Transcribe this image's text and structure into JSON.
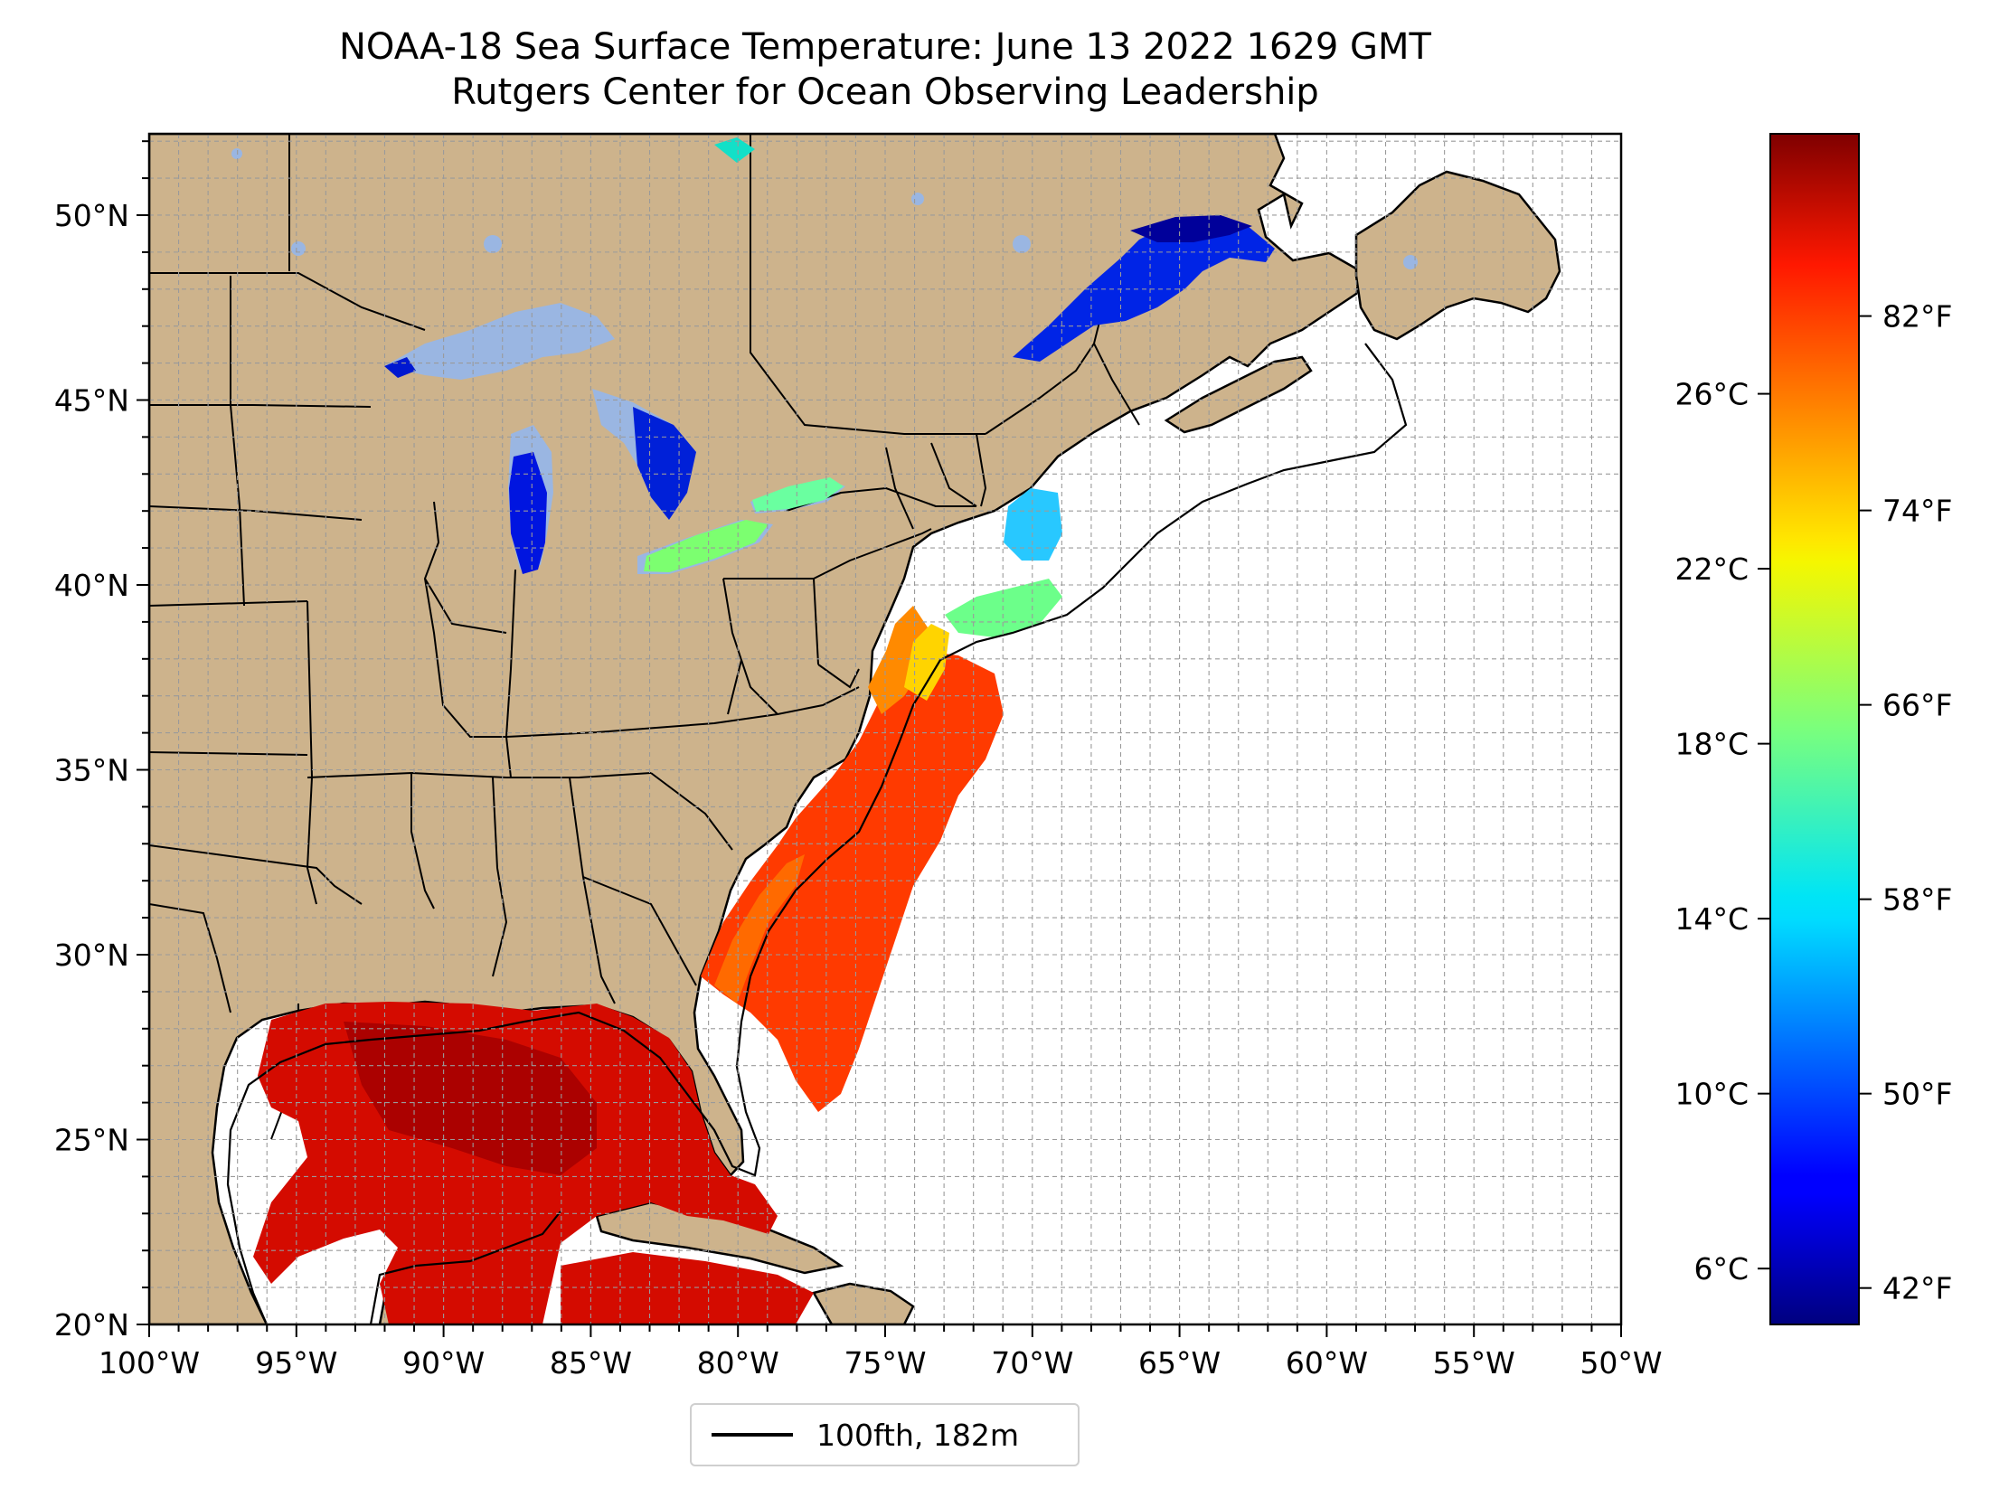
{
  "title_line1": "NOAA-18 Sea Surface Temperature: June 13 2022 1629 GMT",
  "title_line2": "Rutgers Center for Ocean Observing Leadership",
  "map": {
    "lon_range": [
      -100,
      -50
    ],
    "lat_range": [
      20,
      52.2
    ],
    "land_color": "#cdb38c",
    "lake_color": "#9ab6e2",
    "ocean_color": "#ffffff",
    "grid": true,
    "lon_ticks": [
      {
        "value": -100,
        "label": "100°W"
      },
      {
        "value": -95,
        "label": "95°W"
      },
      {
        "value": -90,
        "label": "90°W"
      },
      {
        "value": -85,
        "label": "85°W"
      },
      {
        "value": -80,
        "label": "80°W"
      },
      {
        "value": -75,
        "label": "75°W"
      },
      {
        "value": -70,
        "label": "70°W"
      },
      {
        "value": -65,
        "label": "65°W"
      },
      {
        "value": -60,
        "label": "60°W"
      },
      {
        "value": -55,
        "label": "55°W"
      },
      {
        "value": -50,
        "label": "50°W"
      }
    ],
    "lat_ticks": [
      {
        "value": 20,
        "label": "20°N"
      },
      {
        "value": 25,
        "label": "25°N"
      },
      {
        "value": 30,
        "label": "30°N"
      },
      {
        "value": 35,
        "label": "35°N"
      },
      {
        "value": 40,
        "label": "40°N"
      },
      {
        "value": 45,
        "label": "45°N"
      },
      {
        "value": 50,
        "label": "50°N"
      }
    ]
  },
  "colorbar": {
    "colormap": "jet",
    "range_f": [
      40.5,
      89.5
    ],
    "fahrenheit_ticks": [
      {
        "value": 42,
        "label": "42°F"
      },
      {
        "value": 50,
        "label": "50°F"
      },
      {
        "value": 58,
        "label": "58°F"
      },
      {
        "value": 66,
        "label": "66°F"
      },
      {
        "value": 74,
        "label": "74°F"
      },
      {
        "value": 82,
        "label": "82°F"
      }
    ],
    "celsius_ticks": [
      {
        "value": 6,
        "label": "6°C"
      },
      {
        "value": 10,
        "label": "10°C"
      },
      {
        "value": 14,
        "label": "14°C"
      },
      {
        "value": 18,
        "label": "18°C"
      },
      {
        "value": 22,
        "label": "22°C"
      },
      {
        "value": 26,
        "label": "26°C"
      }
    ]
  },
  "legend": {
    "label": "100fth, 182m"
  }
}
